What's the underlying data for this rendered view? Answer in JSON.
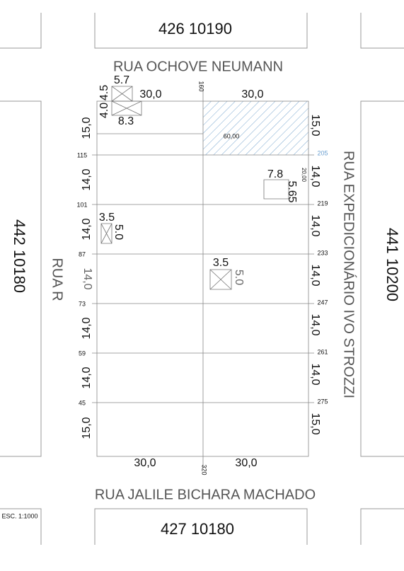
{
  "blocks": [
    {
      "label": "426    10190"
    },
    {
      "label": "442   10180"
    },
    {
      "label": "441   10200"
    },
    {
      "label": "427   10180"
    }
  ],
  "streets": [
    "RUA OCHOVE NEUMANN",
    "RUA R",
    "RUA EXPEDICIONÁRIO IVO STROZZI",
    "RUA JALILE BICHARA MACHADO"
  ],
  "scale": "ESC. 1:1000",
  "frontages": {
    "top_left": "30,0",
    "top_right": "30,0",
    "bottom_left": "30,0",
    "bottom_right": "30,0"
  },
  "lot_depths": {
    "left": [
      "15,0",
      "14,0",
      "14,0",
      "14,0",
      "14,0",
      "14,0",
      "15,0"
    ],
    "right": [
      "15,0",
      "14,0",
      "14,0",
      "14,0",
      "14,0",
      "14,0",
      "15,0"
    ]
  },
  "lot_numbers": {
    "left": [
      "115",
      "101",
      "87",
      "73",
      "59",
      "45"
    ],
    "right": [
      "205",
      "219",
      "233",
      "247",
      "261",
      "275"
    ],
    "top": "160",
    "bottom": "320"
  },
  "hatched_lot": {
    "area": "60,00",
    "width": "20,00"
  },
  "buildings": [
    {
      "w": "5.7",
      "h": "4.5"
    },
    {
      "w": "8.3",
      "h": "4.0"
    },
    {
      "w": "7.8",
      "h": "5.65"
    },
    {
      "w": "3.5",
      "h": "5.0"
    },
    {
      "w": "3.5",
      "h": "5.0"
    }
  ]
}
